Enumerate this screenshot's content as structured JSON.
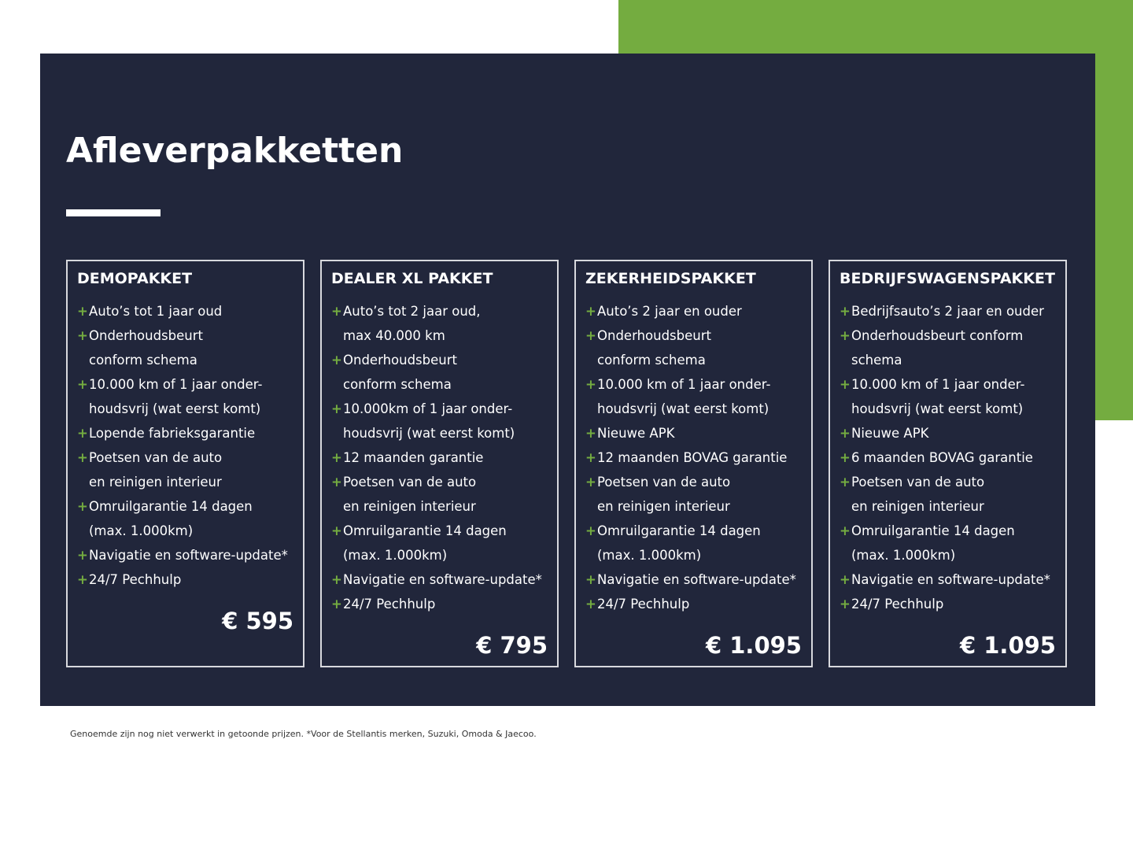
{
  "colors": {
    "navy": "#21263b",
    "green": "#74ac40",
    "border": "#d8d9de"
  },
  "title": "Afleverpakketten",
  "cards": [
    {
      "name": "DEMOPAKKET",
      "price": "€ 595",
      "items": [
        [
          "Auto’s tot 1 jaar oud"
        ],
        [
          "Onderhoudsbeurt",
          "conform schema"
        ],
        [
          "10.000 km of 1 jaar onder-",
          "houdsvrij (wat eerst komt)"
        ],
        [
          "Lopende fabrieksgarantie"
        ],
        [
          "Poetsen van de auto",
          "en reinigen interieur"
        ],
        [
          "Omruilgarantie 14 dagen",
          "(max. 1.000km)"
        ],
        [
          "Navigatie en software-update*"
        ],
        [
          "24/7 Pechhulp"
        ]
      ]
    },
    {
      "name": "DEALER XL PAKKET",
      "price": "€ 795",
      "items": [
        [
          "Auto’s tot 2 jaar oud,",
          "max 40.000 km"
        ],
        [
          "Onderhoudsbeurt",
          "conform schema"
        ],
        [
          "10.000km of 1 jaar onder-",
          "houdsvrij (wat eerst komt)"
        ],
        [
          "12 maanden garantie"
        ],
        [
          "Poetsen van de auto",
          "en reinigen interieur"
        ],
        [
          "Omruilgarantie 14 dagen",
          "(max. 1.000km)"
        ],
        [
          "Navigatie en software-update*"
        ],
        [
          "24/7 Pechhulp"
        ]
      ]
    },
    {
      "name": "ZEKERHEIDSPAKKET",
      "price": "€ 1.095",
      "items": [
        [
          "Auto’s 2 jaar en ouder"
        ],
        [
          "Onderhoudsbeurt",
          "conform schema"
        ],
        [
          "10.000 km of 1 jaar onder-",
          "houdsvrij (wat eerst komt)"
        ],
        [
          "Nieuwe APK"
        ],
        [
          "12 maanden BOVAG garantie"
        ],
        [
          "Poetsen van de auto",
          "en reinigen interieur"
        ],
        [
          "Omruilgarantie 14 dagen",
          "(max. 1.000km)"
        ],
        [
          "Navigatie en software-update*"
        ],
        [
          "24/7 Pechhulp"
        ]
      ]
    },
    {
      "name": "BEDRIJFSWAGENSPAKKET",
      "price": "€ 1.095",
      "items": [
        [
          "Bedrijfsauto’s 2 jaar en ouder"
        ],
        [
          "Onderhoudsbeurt conform",
          "schema"
        ],
        [
          "10.000 km of 1 jaar onder-",
          "houdsvrij (wat eerst komt)"
        ],
        [
          "Nieuwe APK"
        ],
        [
          "6 maanden BOVAG garantie"
        ],
        [
          "Poetsen van de auto",
          "en reinigen interieur"
        ],
        [
          "Omruilgarantie 14 dagen",
          "(max. 1.000km)"
        ],
        [
          "Navigatie en software-update*"
        ],
        [
          "24/7 Pechhulp"
        ]
      ]
    }
  ],
  "bullet": "+",
  "footnote": "Genoemde zijn nog niet verwerkt in getoonde prijzen. *Voor de Stellantis merken, Suzuki, Omoda & Jaecoo."
}
